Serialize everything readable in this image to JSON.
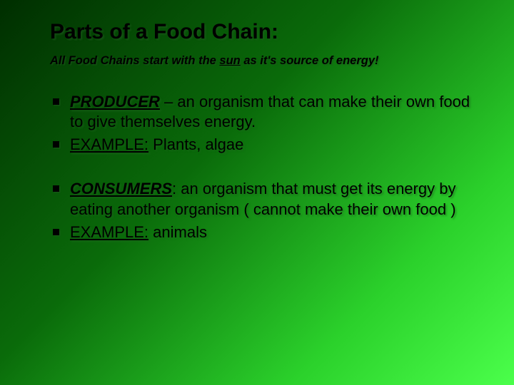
{
  "colors": {
    "text": "#000000",
    "shadow": "rgba(30,90,30,0.6)",
    "bg_gradient_stops": [
      "#002e00",
      "#0a6b0a",
      "#2bd12b",
      "#4bff4b"
    ]
  },
  "typography": {
    "title_fontsize": 30,
    "subtitle_fontsize": 16.5,
    "body_fontsize": 22,
    "font_family": "Arial"
  },
  "title": "Parts of a Food Chain:",
  "subtitle": {
    "pre": "All Food Chains start with the ",
    "sun": "sun",
    "post": " as it's source of energy!"
  },
  "bullets": [
    {
      "term": "PRODUCER",
      "sep": " – ",
      "def": "an organism that can make their own food to give themselves energy."
    },
    {
      "label": "EXAMPLE:",
      "text": " Plants, algae"
    },
    {
      "term": "CONSUMERS",
      "sep": ": ",
      "def": "an organism that must get its energy by eating another organism ( cannot make their own food )"
    },
    {
      "label": "EXAMPLE:",
      "text": " animals"
    }
  ]
}
